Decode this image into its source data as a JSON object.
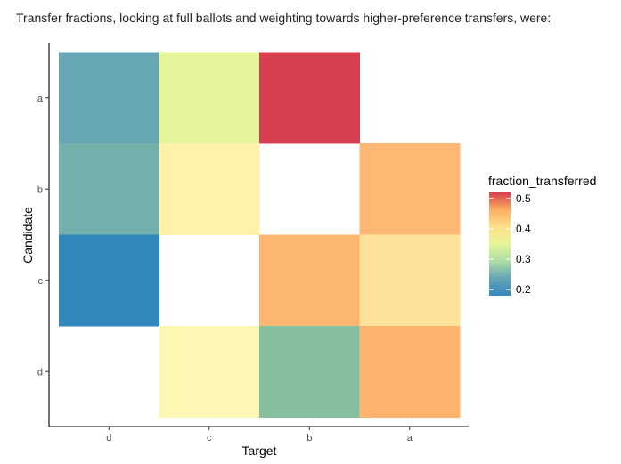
{
  "page_title": "Transfer fractions, looking at full ballots and weighting towards higher-preference transfers, were:",
  "chart_data": {
    "type": "heatmap",
    "title": "",
    "xlabel": "Target",
    "ylabel": "Candidate",
    "x_categories": [
      "d",
      "c",
      "b",
      "a"
    ],
    "y_categories": [
      "a",
      "b",
      "c",
      "d"
    ],
    "cells": [
      {
        "candidate": "a",
        "target": "d",
        "value": 0.22,
        "color": "#66a7b3"
      },
      {
        "candidate": "a",
        "target": "c",
        "value": 0.32,
        "color": "#e4f59b"
      },
      {
        "candidate": "a",
        "target": "b",
        "value": 0.52,
        "color": "#d73f50"
      },
      {
        "candidate": "b",
        "target": "d",
        "value": 0.25,
        "color": "#74b0ab"
      },
      {
        "candidate": "b",
        "target": "c",
        "value": 0.37,
        "color": "#fef1aa"
      },
      {
        "candidate": "b",
        "target": "a",
        "value": 0.44,
        "color": "#feb874"
      },
      {
        "candidate": "c",
        "target": "d",
        "value": 0.18,
        "color": "#3288bd"
      },
      {
        "candidate": "c",
        "target": "b",
        "value": 0.44,
        "color": "#feb773"
      },
      {
        "candidate": "c",
        "target": "a",
        "value": 0.39,
        "color": "#fee29b"
      },
      {
        "candidate": "d",
        "target": "c",
        "value": 0.36,
        "color": "#fef7b3"
      },
      {
        "candidate": "d",
        "target": "b",
        "value": 0.27,
        "color": "#86bea0"
      },
      {
        "candidate": "d",
        "target": "a",
        "value": 0.44,
        "color": "#feb46f"
      }
    ],
    "legend": {
      "title": "fraction_transferred",
      "ticks": [
        "0.5",
        "0.4",
        "0.3",
        "0.2"
      ],
      "tick_values": [
        0.5,
        0.4,
        0.3,
        0.2
      ],
      "range": [
        0.18,
        0.52
      ],
      "colors": [
        "#d53e4f",
        "#fdae61",
        "#fee08b",
        "#e6f598",
        "#abdda4",
        "#66a3b5",
        "#3288bd"
      ]
    }
  }
}
